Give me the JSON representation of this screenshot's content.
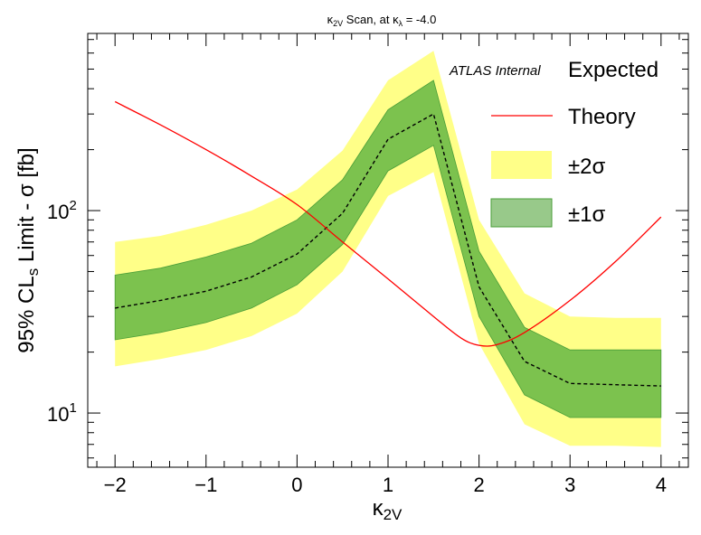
{
  "chart_data": {
    "type": "line",
    "title": "κ2V Scan, at κλ = -4.0",
    "title_parts": {
      "k1": "κ",
      "s1": "2V",
      "mid": " Scan, at κ",
      "s2": "λ",
      "end": " = -4.0"
    },
    "xlabel": "κ2V",
    "xlabel_parts": {
      "base": "κ",
      "sub": "2V"
    },
    "ylabel": "95% CLs Limit - σ [fb]",
    "ylabel_parts": {
      "a": "95% CL",
      "sub": "s",
      "b": " Limit - σ [fb]"
    },
    "xlim": [
      -2.3,
      4.3
    ],
    "ylim": [
      5.4,
      750
    ],
    "yscale": "log",
    "x_ticks": [
      -2,
      -1,
      0,
      1,
      2,
      3,
      4
    ],
    "x_tick_labels": [
      "−2",
      "−1",
      "0",
      "1",
      "2",
      "3",
      "4"
    ],
    "y_tick_labels": [
      {
        "value": 10,
        "base": "10",
        "exp": "1"
      },
      {
        "value": 100,
        "base": "10",
        "exp": "2"
      }
    ],
    "atlas_label": "ATLAS Internal",
    "legend": {
      "position": "top-right",
      "entries": [
        {
          "label": "Expected",
          "style": "dashed-black"
        },
        {
          "label": "Theory",
          "style": "red-line"
        },
        {
          "label": "±2σ",
          "style": "yellow-band"
        },
        {
          "label": "±1σ",
          "style": "green-band"
        }
      ]
    },
    "colors": {
      "theory": "#ff0000",
      "expected": "#000000",
      "band2": "#ffff88",
      "band1": "#7cc24e",
      "band1_edge": "#4a9e38"
    },
    "x": [
      -2,
      -1.5,
      -1,
      -0.5,
      0,
      0.5,
      1,
      1.5,
      2,
      2.5,
      3,
      3.5,
      4
    ],
    "series": [
      {
        "name": "Expected",
        "values": [
          33,
          36,
          40,
          47,
          61,
          97,
          225,
          300,
          42,
          18,
          14,
          13.8,
          13.6
        ]
      },
      {
        "name": "±1σ",
        "low": [
          23,
          25,
          28,
          33,
          43,
          68,
          157,
          210,
          30,
          12.3,
          9.5,
          9.5,
          9.5
        ],
        "high": [
          48,
          52,
          59,
          69,
          90,
          142,
          315,
          440,
          63,
          26.5,
          20.5,
          20.5,
          20.5
        ]
      },
      {
        "name": "±2σ",
        "low": [
          17,
          18.5,
          20.5,
          24,
          31,
          50,
          118,
          155,
          22,
          8.8,
          6.9,
          6.9,
          6.8
        ],
        "high": [
          70,
          75,
          85,
          100,
          127,
          198,
          440,
          615,
          90,
          39,
          30,
          29.5,
          29.5
        ]
      },
      {
        "name": "Theory",
        "points": [
          [
            -2,
            345
          ],
          [
            -1.5,
            265
          ],
          [
            -1,
            200
          ],
          [
            -0.5,
            148
          ],
          [
            0,
            107
          ],
          [
            0.5,
            70
          ],
          [
            1,
            46
          ],
          [
            1.5,
            30
          ],
          [
            1.8,
            23.5
          ],
          [
            2,
            21.6
          ],
          [
            2.2,
            21.8
          ],
          [
            2.5,
            25
          ],
          [
            3,
            36
          ],
          [
            3.5,
            56
          ],
          [
            4,
            93
          ]
        ]
      }
    ]
  }
}
